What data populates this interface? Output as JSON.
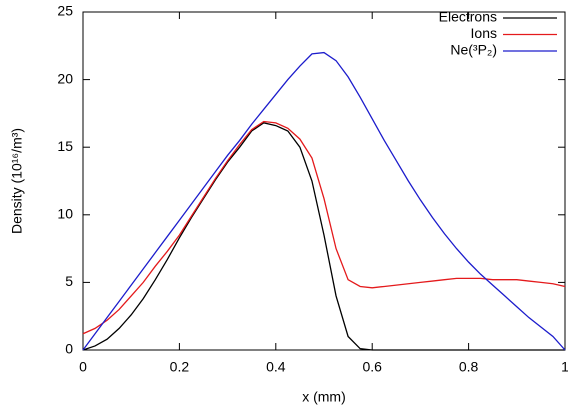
{
  "chart_data": {
    "type": "line",
    "xlabel": "x (mm)",
    "ylabel": "Density (10¹⁶/m³)",
    "x": [
      0,
      0.025,
      0.05,
      0.075,
      0.1,
      0.125,
      0.15,
      0.175,
      0.2,
      0.225,
      0.25,
      0.275,
      0.3,
      0.325,
      0.35,
      0.375,
      0.4,
      0.425,
      0.45,
      0.475,
      0.5,
      0.525,
      0.55,
      0.575,
      0.6,
      0.625,
      0.65,
      0.675,
      0.7,
      0.725,
      0.75,
      0.775,
      0.8,
      0.825,
      0.85,
      0.875,
      0.9,
      0.925,
      0.95,
      0.975,
      1
    ],
    "series": [
      {
        "name": "Electrons",
        "color": "#000000",
        "values": [
          0,
          0.3,
          0.8,
          1.6,
          2.6,
          3.8,
          5.2,
          6.7,
          8.3,
          9.8,
          11.2,
          12.6,
          13.9,
          15,
          16.2,
          16.8,
          16.6,
          16.2,
          15,
          12.5,
          8.5,
          4,
          1,
          0.1,
          0,
          0,
          0,
          0,
          0,
          0,
          0,
          0,
          0,
          0,
          0,
          0,
          0,
          0,
          0,
          0,
          0
        ]
      },
      {
        "name": "Ions",
        "color": "#e41a1c",
        "values": [
          1.2,
          1.6,
          2.2,
          3,
          4,
          5,
          6.2,
          7.3,
          8.5,
          9.9,
          11.3,
          12.7,
          14,
          15.2,
          16.3,
          16.9,
          16.8,
          16.4,
          15.6,
          14.2,
          11.2,
          7.5,
          5.2,
          4.7,
          4.6,
          4.7,
          4.8,
          4.9,
          5.0,
          5.1,
          5.2,
          5.3,
          5.3,
          5.3,
          5.2,
          5.2,
          5.2,
          5.1,
          5.0,
          4.9,
          4.7
        ]
      },
      {
        "name": "Ne(³P₂)",
        "color": "#1c1ccc",
        "values": [
          0,
          1.2,
          2.4,
          3.6,
          4.8,
          6,
          7.2,
          8.4,
          9.6,
          10.8,
          12,
          13.2,
          14.4,
          15.5,
          16.7,
          17.8,
          18.9,
          20,
          21,
          21.9,
          22,
          21.4,
          20.2,
          18.7,
          17.1,
          15.5,
          14,
          12.5,
          11.1,
          9.8,
          8.6,
          7.5,
          6.5,
          5.6,
          4.8,
          4,
          3.2,
          2.4,
          1.7,
          1,
          0
        ]
      }
    ],
    "xlim": [
      0,
      1
    ],
    "xticks": [
      0,
      0.2,
      0.4,
      0.6,
      0.8,
      1
    ],
    "ylim": [
      0,
      25
    ],
    "yticks": [
      0,
      5,
      10,
      15,
      20,
      25
    ],
    "grid": false,
    "legend": "top-right"
  }
}
